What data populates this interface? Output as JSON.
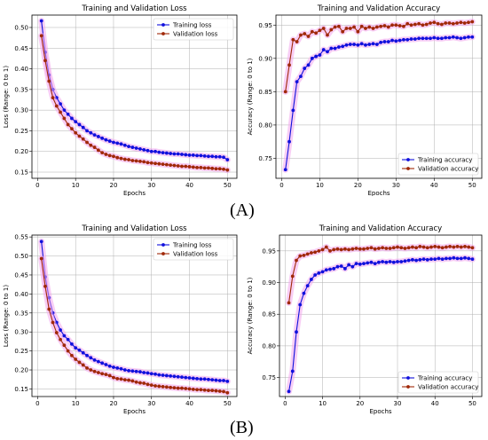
{
  "panels": [
    {
      "label": "(A)"
    },
    {
      "label": "(B)"
    }
  ],
  "colors": {
    "training": "#1010dd",
    "validation": "#a02808",
    "band": "#f2a6ec",
    "grid": "#b0b0b0"
  },
  "chart_data": [
    {
      "type": "line",
      "panel": "A",
      "title": "Training and Validation Loss",
      "xlabel": "Epochs",
      "ylabel": "Loss (Range: 0 to 1)",
      "xlim": [
        -1.5,
        52.5
      ],
      "ylim": [
        0.135,
        0.53
      ],
      "xticks": [
        0,
        10,
        20,
        30,
        40,
        50
      ],
      "yticks": [
        0.15,
        0.2,
        0.25,
        0.3,
        0.35,
        0.4,
        0.45,
        0.5
      ],
      "grid": true,
      "legend": "top-right",
      "x": [
        1,
        2,
        3,
        4,
        5,
        6,
        7,
        8,
        9,
        10,
        11,
        12,
        13,
        14,
        15,
        16,
        17,
        18,
        19,
        20,
        21,
        22,
        23,
        24,
        25,
        26,
        27,
        28,
        29,
        30,
        31,
        32,
        33,
        34,
        35,
        36,
        37,
        38,
        39,
        40,
        41,
        42,
        43,
        44,
        45,
        46,
        47,
        48,
        49,
        50
      ],
      "series": [
        {
          "name": "Training loss",
          "values": [
            0.516,
            0.44,
            0.385,
            0.35,
            0.33,
            0.315,
            0.3,
            0.29,
            0.28,
            0.272,
            0.265,
            0.258,
            0.25,
            0.245,
            0.24,
            0.236,
            0.232,
            0.228,
            0.225,
            0.222,
            0.22,
            0.218,
            0.215,
            0.212,
            0.21,
            0.208,
            0.206,
            0.204,
            0.202,
            0.2,
            0.2,
            0.198,
            0.197,
            0.196,
            0.195,
            0.194,
            0.194,
            0.193,
            0.192,
            0.191,
            0.191,
            0.19,
            0.19,
            0.189,
            0.188,
            0.188,
            0.187,
            0.187,
            0.186,
            0.18
          ]
        },
        {
          "name": "Validation loss",
          "values": [
            0.48,
            0.42,
            0.37,
            0.33,
            0.31,
            0.295,
            0.28,
            0.265,
            0.255,
            0.245,
            0.237,
            0.23,
            0.222,
            0.215,
            0.21,
            0.203,
            0.197,
            0.193,
            0.19,
            0.188,
            0.185,
            0.183,
            0.181,
            0.18,
            0.178,
            0.177,
            0.176,
            0.175,
            0.173,
            0.172,
            0.171,
            0.17,
            0.169,
            0.168,
            0.167,
            0.166,
            0.165,
            0.164,
            0.164,
            0.163,
            0.162,
            0.161,
            0.161,
            0.16,
            0.16,
            0.159,
            0.158,
            0.158,
            0.157,
            0.155
          ]
        }
      ]
    },
    {
      "type": "line",
      "panel": "A",
      "title": "Training and Validation Accuracy",
      "xlabel": "Epochs",
      "ylabel": "Accuracy (Range: 0 to 1)",
      "xlim": [
        -1.5,
        52.5
      ],
      "ylim": [
        0.72,
        0.965
      ],
      "xticks": [
        0,
        10,
        20,
        30,
        40,
        50
      ],
      "yticks": [
        0.75,
        0.8,
        0.85,
        0.9,
        0.95
      ],
      "grid": true,
      "legend": "bottom-right",
      "x": [
        1,
        2,
        3,
        4,
        5,
        6,
        7,
        8,
        9,
        10,
        11,
        12,
        13,
        14,
        15,
        16,
        17,
        18,
        19,
        20,
        21,
        22,
        23,
        24,
        25,
        26,
        27,
        28,
        29,
        30,
        31,
        32,
        33,
        34,
        35,
        36,
        37,
        38,
        39,
        40,
        41,
        42,
        43,
        44,
        45,
        46,
        47,
        48,
        49,
        50
      ],
      "series": [
        {
          "name": "Training accuracy",
          "values": [
            0.733,
            0.775,
            0.822,
            0.865,
            0.873,
            0.885,
            0.89,
            0.9,
            0.903,
            0.905,
            0.913,
            0.91,
            0.915,
            0.915,
            0.917,
            0.918,
            0.92,
            0.921,
            0.921,
            0.92,
            0.922,
            0.92,
            0.921,
            0.922,
            0.921,
            0.924,
            0.925,
            0.925,
            0.927,
            0.926,
            0.927,
            0.928,
            0.928,
            0.929,
            0.929,
            0.93,
            0.93,
            0.93,
            0.93,
            0.931,
            0.93,
            0.93,
            0.931,
            0.931,
            0.932,
            0.931,
            0.93,
            0.931,
            0.932,
            0.932
          ]
        },
        {
          "name": "Validation accuracy",
          "values": [
            0.85,
            0.89,
            0.928,
            0.925,
            0.935,
            0.937,
            0.933,
            0.94,
            0.938,
            0.942,
            0.945,
            0.935,
            0.943,
            0.947,
            0.948,
            0.94,
            0.945,
            0.945,
            0.947,
            0.94,
            0.948,
            0.945,
            0.947,
            0.945,
            0.947,
            0.948,
            0.949,
            0.947,
            0.95,
            0.95,
            0.949,
            0.948,
            0.952,
            0.95,
            0.951,
            0.952,
            0.95,
            0.951,
            0.953,
            0.954,
            0.952,
            0.951,
            0.953,
            0.953,
            0.952,
            0.953,
            0.954,
            0.953,
            0.954,
            0.955
          ]
        }
      ]
    },
    {
      "type": "line",
      "panel": "B",
      "title": "Training and Validation Loss",
      "xlabel": "Epochs",
      "ylabel": "Loss (Range: 0 to 1)",
      "xlim": [
        -1.5,
        52.5
      ],
      "ylim": [
        0.13,
        0.555
      ],
      "xticks": [
        0,
        10,
        20,
        30,
        40,
        50
      ],
      "yticks": [
        0.15,
        0.2,
        0.25,
        0.3,
        0.35,
        0.4,
        0.45,
        0.5,
        0.55
      ],
      "grid": true,
      "legend": "top-right",
      "x": [
        1,
        2,
        3,
        4,
        5,
        6,
        7,
        8,
        9,
        10,
        11,
        12,
        13,
        14,
        15,
        16,
        17,
        18,
        19,
        20,
        21,
        22,
        23,
        24,
        25,
        26,
        27,
        28,
        29,
        30,
        31,
        32,
        33,
        34,
        35,
        36,
        37,
        38,
        39,
        40,
        41,
        42,
        43,
        44,
        45,
        46,
        47,
        48,
        49,
        50
      ],
      "series": [
        {
          "name": "Training loss",
          "values": [
            0.538,
            0.445,
            0.39,
            0.35,
            0.325,
            0.305,
            0.29,
            0.28,
            0.268,
            0.258,
            0.252,
            0.245,
            0.238,
            0.232,
            0.226,
            0.222,
            0.218,
            0.214,
            0.21,
            0.207,
            0.205,
            0.203,
            0.2,
            0.198,
            0.197,
            0.196,
            0.195,
            0.193,
            0.192,
            0.19,
            0.189,
            0.187,
            0.186,
            0.185,
            0.184,
            0.183,
            0.182,
            0.181,
            0.18,
            0.179,
            0.178,
            0.177,
            0.176,
            0.176,
            0.175,
            0.174,
            0.173,
            0.172,
            0.172,
            0.17
          ]
        },
        {
          "name": "Validation loss",
          "values": [
            0.493,
            0.42,
            0.36,
            0.325,
            0.298,
            0.28,
            0.265,
            0.25,
            0.238,
            0.228,
            0.22,
            0.213,
            0.205,
            0.2,
            0.196,
            0.193,
            0.19,
            0.188,
            0.185,
            0.18,
            0.177,
            0.176,
            0.174,
            0.173,
            0.171,
            0.168,
            0.166,
            0.165,
            0.162,
            0.16,
            0.158,
            0.157,
            0.156,
            0.155,
            0.154,
            0.153,
            0.152,
            0.152,
            0.151,
            0.15,
            0.149,
            0.148,
            0.148,
            0.147,
            0.146,
            0.146,
            0.145,
            0.144,
            0.143,
            0.14
          ]
        }
      ]
    },
    {
      "type": "line",
      "panel": "B",
      "title": "Training and Validation Accuracy",
      "xlabel": "Epochs",
      "ylabel": "Accuracy (Range: 0 to 1)",
      "xlim": [
        -1.5,
        52.5
      ],
      "ylim": [
        0.72,
        0.975
      ],
      "xticks": [
        0,
        10,
        20,
        30,
        40,
        50
      ],
      "yticks": [
        0.75,
        0.8,
        0.85,
        0.9,
        0.95
      ],
      "grid": true,
      "legend": "bottom-right",
      "x": [
        1,
        2,
        3,
        4,
        5,
        6,
        7,
        8,
        9,
        10,
        11,
        12,
        13,
        14,
        15,
        16,
        17,
        18,
        19,
        20,
        21,
        22,
        23,
        24,
        25,
        26,
        27,
        28,
        29,
        30,
        31,
        32,
        33,
        34,
        35,
        36,
        37,
        38,
        39,
        40,
        41,
        42,
        43,
        44,
        45,
        46,
        47,
        48,
        49,
        50
      ],
      "series": [
        {
          "name": "Training accuracy",
          "values": [
            0.728,
            0.76,
            0.822,
            0.865,
            0.883,
            0.895,
            0.905,
            0.912,
            0.915,
            0.917,
            0.92,
            0.921,
            0.922,
            0.925,
            0.926,
            0.922,
            0.928,
            0.925,
            0.93,
            0.929,
            0.93,
            0.931,
            0.932,
            0.93,
            0.932,
            0.933,
            0.932,
            0.933,
            0.932,
            0.933,
            0.933,
            0.934,
            0.935,
            0.936,
            0.935,
            0.936,
            0.937,
            0.936,
            0.937,
            0.937,
            0.938,
            0.937,
            0.938,
            0.938,
            0.939,
            0.938,
            0.938,
            0.939,
            0.938,
            0.937
          ]
        },
        {
          "name": "Validation accuracy",
          "values": [
            0.868,
            0.91,
            0.935,
            0.942,
            0.943,
            0.945,
            0.947,
            0.948,
            0.95,
            0.952,
            0.956,
            0.95,
            0.952,
            0.953,
            0.952,
            0.953,
            0.952,
            0.953,
            0.954,
            0.953,
            0.953,
            0.954,
            0.955,
            0.953,
            0.954,
            0.955,
            0.954,
            0.954,
            0.955,
            0.956,
            0.955,
            0.954,
            0.955,
            0.956,
            0.955,
            0.957,
            0.956,
            0.955,
            0.956,
            0.957,
            0.956,
            0.955,
            0.956,
            0.957,
            0.956,
            0.957,
            0.956,
            0.957,
            0.956,
            0.955
          ]
        }
      ]
    }
  ]
}
